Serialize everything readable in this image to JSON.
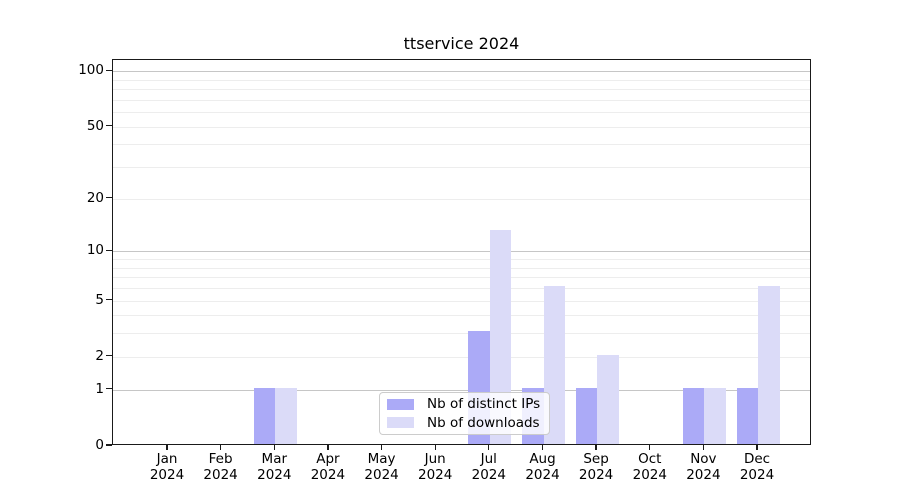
{
  "chart_data": {
    "type": "bar",
    "title": "ttservice 2024",
    "x_tick_months": [
      "Jan",
      "Feb",
      "Mar",
      "Apr",
      "May",
      "Jun",
      "Jul",
      "Aug",
      "Sep",
      "Oct",
      "Nov",
      "Dec"
    ],
    "x_tick_year": "2024",
    "series": [
      {
        "name": "Nb of distinct IPs",
        "color": "#abaaf7",
        "values": [
          0,
          0,
          1,
          0,
          0,
          0,
          3,
          1,
          1,
          0,
          1,
          1
        ]
      },
      {
        "name": "Nb of downloads",
        "color": "#dbdbf8",
        "values": [
          0,
          0,
          1,
          0,
          0,
          0,
          13,
          6,
          2,
          0,
          1,
          6
        ]
      }
    ],
    "xlabel": "",
    "ylabel": "",
    "yscale": "log1p",
    "ylim": [
      0,
      115
    ],
    "yticks": [
      0,
      1,
      2,
      5,
      10,
      20,
      50,
      100
    ],
    "grid_major": [
      1,
      10,
      100
    ],
    "grid_minor": [
      2,
      3,
      4,
      5,
      6,
      7,
      8,
      9,
      20,
      30,
      40,
      50,
      60,
      70,
      80,
      90
    ],
    "legend": {
      "position": "lower center"
    },
    "colors": {
      "major_grid": "#c6c6c6",
      "minor_grid": "#ededed",
      "axis": "#1a1a1a",
      "background": "#ffffff"
    }
  }
}
